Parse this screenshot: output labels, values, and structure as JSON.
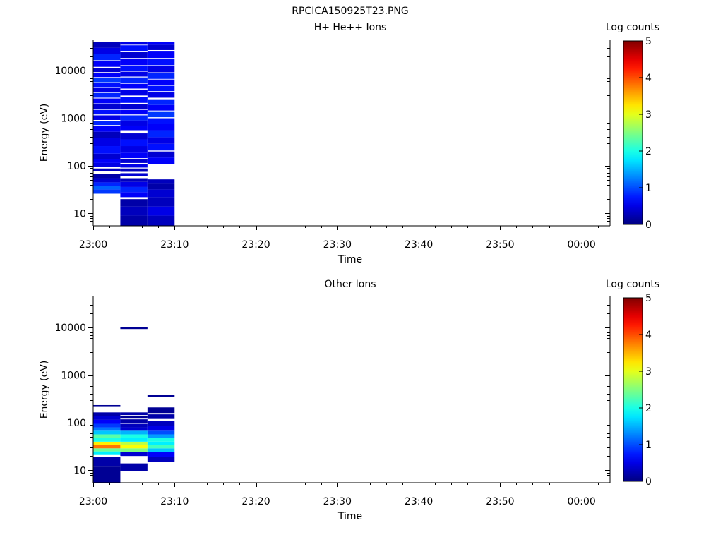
{
  "figure_title": "RPCICA150925T23.PNG",
  "colorbar": {
    "label": "Log counts",
    "ticks": [
      "0",
      "1",
      "2",
      "3",
      "4",
      "5"
    ],
    "range": [
      0,
      5
    ],
    "colormap": "jet"
  },
  "chart_data": [
    {
      "type": "heatmap",
      "title": "H+ He++ Ions",
      "xlabel": "Time",
      "ylabel": "Energy (eV)",
      "x_ticks": [
        "23:00",
        "23:10",
        "23:20",
        "23:30",
        "23:40",
        "23:50",
        "00:00"
      ],
      "x_range_minutes": [
        0,
        63.5
      ],
      "y_scale": "log",
      "y_range": [
        5.5,
        45000
      ],
      "y_ticks": [
        "10",
        "100",
        "1000",
        "10000"
      ],
      "time_bins": [
        {
          "start": "23:00",
          "end": "23:03:20"
        },
        {
          "start": "23:03:20",
          "end": "23:06:40"
        },
        {
          "start": "23:06:40",
          "end": "23:10"
        }
      ],
      "cells": [
        [
          0,
          26,
          32,
          0.9
        ],
        [
          0,
          32,
          38,
          1.1
        ],
        [
          0,
          38,
          45,
          0.8
        ],
        [
          0,
          45,
          55,
          0.4
        ],
        [
          0,
          55,
          68,
          0.2
        ],
        [
          0,
          78,
          88,
          0.3
        ],
        [
          0,
          95,
          115,
          0.5
        ],
        [
          0,
          115,
          140,
          0.6
        ],
        [
          0,
          140,
          180,
          0.4
        ],
        [
          0,
          180,
          260,
          0.7
        ],
        [
          0,
          260,
          380,
          0.5
        ],
        [
          0,
          380,
          520,
          0.3
        ],
        [
          0,
          520,
          700,
          0.6
        ],
        [
          0,
          720,
          880,
          0.8
        ],
        [
          0,
          920,
          1150,
          0.5
        ],
        [
          0,
          1200,
          1500,
          0.7
        ],
        [
          0,
          1550,
          2000,
          0.4
        ],
        [
          0,
          2050,
          2600,
          0.6
        ],
        [
          0,
          2700,
          3400,
          0.8
        ],
        [
          0,
          3500,
          4300,
          0.5
        ],
        [
          0,
          4500,
          5500,
          0.7
        ],
        [
          0,
          5700,
          7000,
          0.9
        ],
        [
          0,
          7300,
          9000,
          0.6
        ],
        [
          0,
          9300,
          11500,
          0.4
        ],
        [
          0,
          12000,
          16000,
          0.6
        ],
        [
          0,
          16500,
          22000,
          0.8
        ],
        [
          0,
          22500,
          30000,
          0.5
        ],
        [
          0,
          30000,
          40000,
          0.3
        ],
        [
          1,
          5.5,
          9,
          0.2
        ],
        [
          1,
          9,
          14,
          0.3
        ],
        [
          1,
          14,
          20,
          0.2
        ],
        [
          1,
          22,
          28,
          0.6
        ],
        [
          1,
          28,
          36,
          0.8
        ],
        [
          1,
          36,
          46,
          0.5
        ],
        [
          1,
          46,
          55,
          0.3
        ],
        [
          1,
          60,
          70,
          0.4
        ],
        [
          1,
          75,
          88,
          0.3
        ],
        [
          1,
          92,
          110,
          0.5
        ],
        [
          1,
          115,
          140,
          0.4
        ],
        [
          1,
          145,
          190,
          0.6
        ],
        [
          1,
          190,
          260,
          0.5
        ],
        [
          1,
          260,
          360,
          0.7
        ],
        [
          1,
          360,
          480,
          0.4
        ],
        [
          1,
          560,
          700,
          0.6
        ],
        [
          1,
          700,
          900,
          0.5
        ],
        [
          1,
          900,
          1150,
          0.8
        ],
        [
          1,
          1200,
          1500,
          0.6
        ],
        [
          1,
          1550,
          2000,
          0.4
        ],
        [
          1,
          2100,
          2800,
          0.7
        ],
        [
          1,
          3000,
          4000,
          0.5
        ],
        [
          1,
          4200,
          5300,
          0.6
        ],
        [
          1,
          5600,
          7200,
          0.8
        ],
        [
          1,
          7500,
          9500,
          0.5
        ],
        [
          1,
          9800,
          12500,
          0.7
        ],
        [
          1,
          13000,
          18000,
          0.6
        ],
        [
          1,
          18500,
          25000,
          0.4
        ],
        [
          1,
          26000,
          34000,
          0.7
        ],
        [
          1,
          35000,
          40000,
          0.5
        ],
        [
          2,
          5.5,
          9,
          0.3
        ],
        [
          2,
          9,
          14,
          0.5
        ],
        [
          2,
          14,
          22,
          0.3
        ],
        [
          2,
          22,
          32,
          0.4
        ],
        [
          2,
          32,
          42,
          0.2
        ],
        [
          2,
          42,
          52,
          0.3
        ],
        [
          2,
          110,
          150,
          0.6
        ],
        [
          2,
          150,
          200,
          0.4
        ],
        [
          2,
          210,
          290,
          0.7
        ],
        [
          2,
          290,
          400,
          0.5
        ],
        [
          2,
          400,
          560,
          0.8
        ],
        [
          2,
          560,
          760,
          0.6
        ],
        [
          2,
          760,
          1000,
          0.7
        ],
        [
          2,
          1050,
          1400,
          0.9
        ],
        [
          2,
          1450,
          1900,
          0.6
        ],
        [
          2,
          1900,
          2500,
          0.8
        ],
        [
          2,
          2700,
          3600,
          0.5
        ],
        [
          2,
          3700,
          4800,
          0.7
        ],
        [
          2,
          5000,
          6500,
          0.6
        ],
        [
          2,
          6700,
          9000,
          0.8
        ],
        [
          2,
          9200,
          12500,
          0.5
        ],
        [
          2,
          13000,
          18000,
          0.7
        ],
        [
          2,
          18500,
          26000,
          0.6
        ],
        [
          2,
          27000,
          35000,
          0.4
        ],
        [
          2,
          35000,
          40000,
          0.6
        ]
      ]
    },
    {
      "type": "heatmap",
      "title": "Other Ions",
      "xlabel": "Time",
      "ylabel": "Energy (eV)",
      "x_ticks": [
        "23:00",
        "23:10",
        "23:20",
        "23:30",
        "23:40",
        "23:50",
        "00:00"
      ],
      "x_range_minutes": [
        0,
        63.5
      ],
      "y_scale": "log",
      "y_range": [
        5.5,
        45000
      ],
      "y_ticks": [
        "10",
        "100",
        "1000",
        "10000"
      ],
      "time_bins": [
        {
          "start": "23:00",
          "end": "23:03:20"
        },
        {
          "start": "23:03:20",
          "end": "23:06:40"
        },
        {
          "start": "23:06:40",
          "end": "23:10"
        }
      ],
      "cells": [
        [
          0,
          5.5,
          12,
          0.1
        ],
        [
          0,
          12,
          19,
          0.2
        ],
        [
          0,
          21,
          25,
          1.8
        ],
        [
          0,
          25,
          29,
          2.4
        ],
        [
          0,
          29,
          34,
          3.8
        ],
        [
          0,
          34,
          40,
          3.2
        ],
        [
          0,
          40,
          48,
          2.0
        ],
        [
          0,
          48,
          57,
          2.3
        ],
        [
          0,
          57,
          68,
          1.6
        ],
        [
          0,
          68,
          80,
          1.2
        ],
        [
          0,
          80,
          95,
          0.9
        ],
        [
          0,
          95,
          115,
          0.6
        ],
        [
          0,
          115,
          140,
          0.4
        ],
        [
          0,
          140,
          165,
          0.2
        ],
        [
          0,
          215,
          235,
          0.1
        ],
        [
          1,
          9.5,
          14,
          0.2
        ],
        [
          1,
          20,
          24,
          0.4
        ],
        [
          1,
          24,
          29,
          2.5
        ],
        [
          1,
          29,
          34,
          3.1
        ],
        [
          1,
          34,
          40,
          2.8
        ],
        [
          1,
          40,
          48,
          1.8
        ],
        [
          1,
          48,
          57,
          2.0
        ],
        [
          1,
          57,
          68,
          1.5
        ],
        [
          1,
          68,
          80,
          0.4
        ],
        [
          1,
          80,
          95,
          0.3
        ],
        [
          1,
          100,
          118,
          0.2
        ],
        [
          1,
          122,
          140,
          0.1
        ],
        [
          1,
          145,
          165,
          0.2
        ],
        [
          1,
          9300,
          10200,
          0.1
        ],
        [
          2,
          15,
          19,
          0.3
        ],
        [
          2,
          19,
          24,
          0.6
        ],
        [
          2,
          24,
          29,
          1.6
        ],
        [
          2,
          29,
          34,
          2.2
        ],
        [
          2,
          34,
          40,
          1.8
        ],
        [
          2,
          40,
          48,
          2.0
        ],
        [
          2,
          48,
          57,
          1.4
        ],
        [
          2,
          57,
          68,
          1.0
        ],
        [
          2,
          68,
          85,
          0.5
        ],
        [
          2,
          85,
          110,
          0.3
        ],
        [
          2,
          120,
          150,
          0.2
        ],
        [
          2,
          160,
          210,
          0.1
        ],
        [
          2,
          350,
          385,
          0.1
        ]
      ]
    }
  ]
}
